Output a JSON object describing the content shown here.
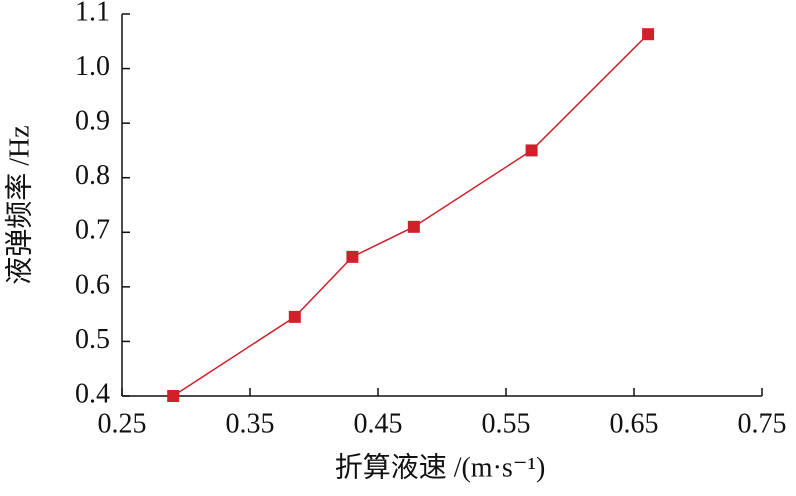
{
  "chart_data": {
    "type": "line",
    "xlabel": "折算液速 /(m·s⁻¹)",
    "ylabel": "液弹频率 /Hz",
    "x": [
      0.29,
      0.385,
      0.43,
      0.478,
      0.57,
      0.661
    ],
    "values": [
      0.4,
      0.545,
      0.655,
      0.71,
      0.85,
      1.063
    ],
    "color": "#d0202a",
    "xlim": [
      0.25,
      0.75
    ],
    "xticks": [
      0.25,
      0.35,
      0.45,
      0.55,
      0.65,
      0.75
    ],
    "ylim": [
      0.4,
      1.1
    ],
    "yticks": [
      0.4,
      0.5,
      0.6,
      0.7,
      0.8,
      0.9,
      {
        "value": 1,
        "label": "1.0"
      },
      1.1
    ]
  }
}
